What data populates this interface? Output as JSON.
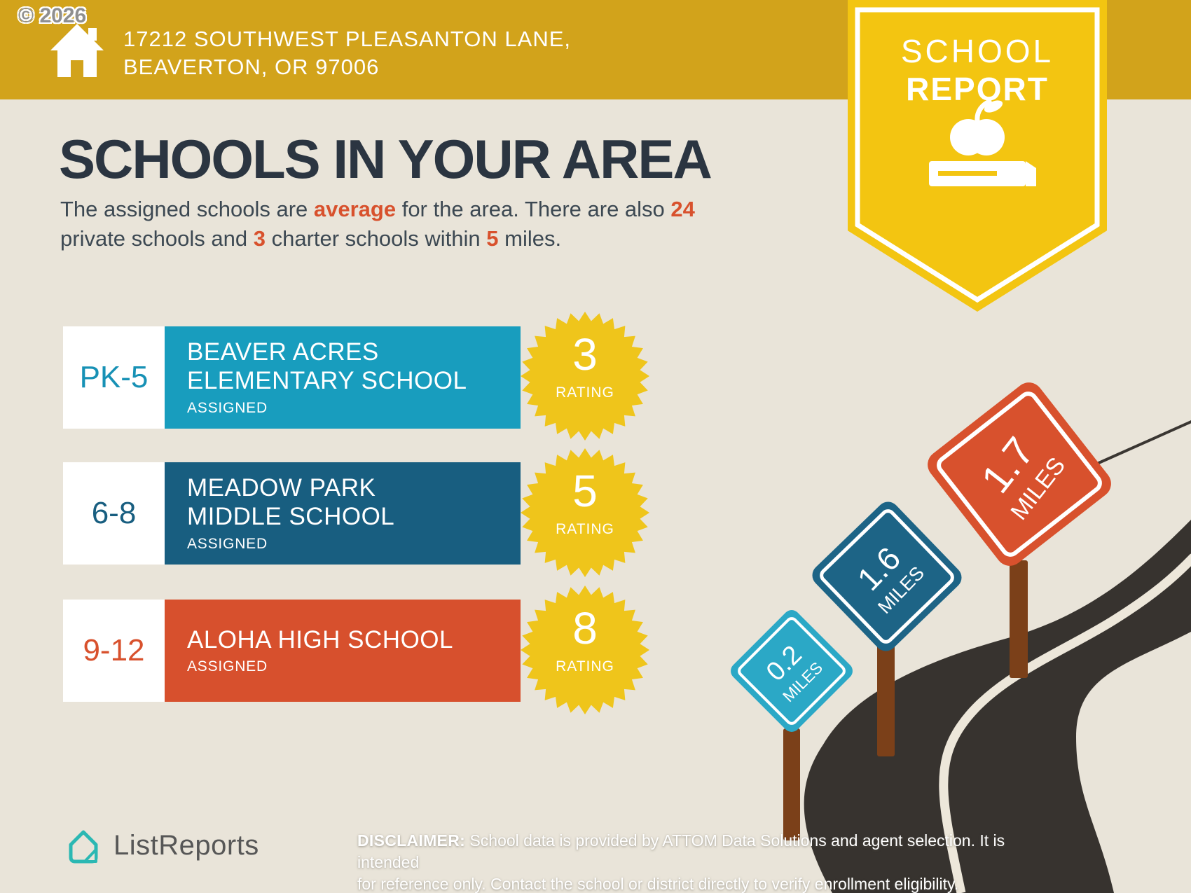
{
  "watermark": "© 2026",
  "header": {
    "address": "17212 SOUTHWEST PLEASANTON LANE, BEAVERTON, OR 97006"
  },
  "badge": {
    "line1": "SCHOOL",
    "line2": "REPORT"
  },
  "main": {
    "title": "SCHOOLS IN YOUR AREA",
    "subtitle": {
      "s1": "The assigned schools are ",
      "h1": "average",
      "s2": " for the area. There are also ",
      "h2": "24",
      "s3": " private schools and ",
      "h3": "3",
      "s4": " charter schools within ",
      "h4": "5",
      "s5": " miles."
    }
  },
  "labels": {
    "rating": "RATING"
  },
  "schools": [
    {
      "grades": "PK-5",
      "name": "BEAVER ACRES ELEMENTARY SCHOOL",
      "status": "ASSIGNED",
      "rating": "3",
      "color": "#189DBE"
    },
    {
      "grades": "6-8",
      "name": "MEADOW PARK MIDDLE SCHOOL",
      "status": "ASSIGNED",
      "rating": "5",
      "color": "#185E80"
    },
    {
      "grades": "9-12",
      "name": "ALOHA HIGH SCHOOL",
      "status": "ASSIGNED",
      "rating": "8",
      "color": "#D7502D"
    }
  ],
  "signs": [
    {
      "value": "0.2",
      "unit": "MILES",
      "color": "#2BA8C6"
    },
    {
      "value": "1.6",
      "unit": "MILES",
      "color": "#1D6486"
    },
    {
      "value": "1.7",
      "unit": "MILES",
      "color": "#D8512D"
    }
  ],
  "footer": {
    "brand": "ListReports",
    "disclaimer_label": "DISCLAIMER:",
    "disclaimer_line1": " School data is provided by ATTOM Data Solutions and agent selection. It is intended",
    "disclaimer_line2": "for reference only. Contact the school or district directly to verify enrollment eligibility."
  },
  "colors": {
    "background": "#E9E4D9",
    "banner_gold": "#D2A31B",
    "badge_yellow": "#F3C511",
    "starburst_yellow": "#EFC51B",
    "teal": "#189DBE",
    "dark_blue": "#185E80",
    "red": "#D8512D",
    "heading_navy": "#2B3541",
    "road": "#37332F",
    "post_brown": "#7B4019"
  }
}
